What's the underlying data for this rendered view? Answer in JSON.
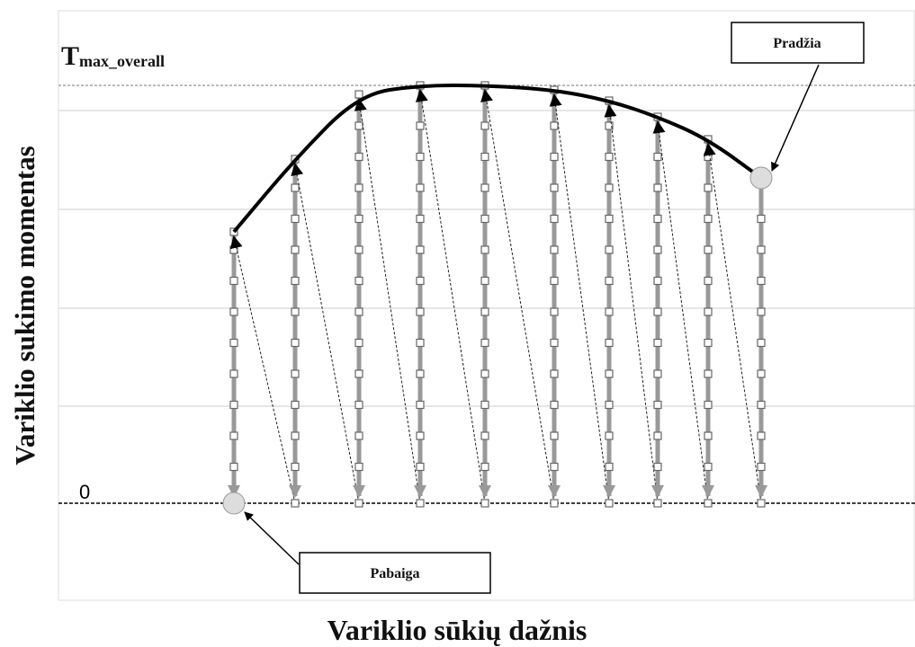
{
  "axis_labels": {
    "y": "Variklio sukimo momentas",
    "x": "Variklio sūkių dažnis"
  },
  "tmax": {
    "main": "T",
    "sub": "max_overall"
  },
  "zero": "0",
  "callouts": {
    "start": "Pradžia",
    "end": "Pabaiga"
  }
}
